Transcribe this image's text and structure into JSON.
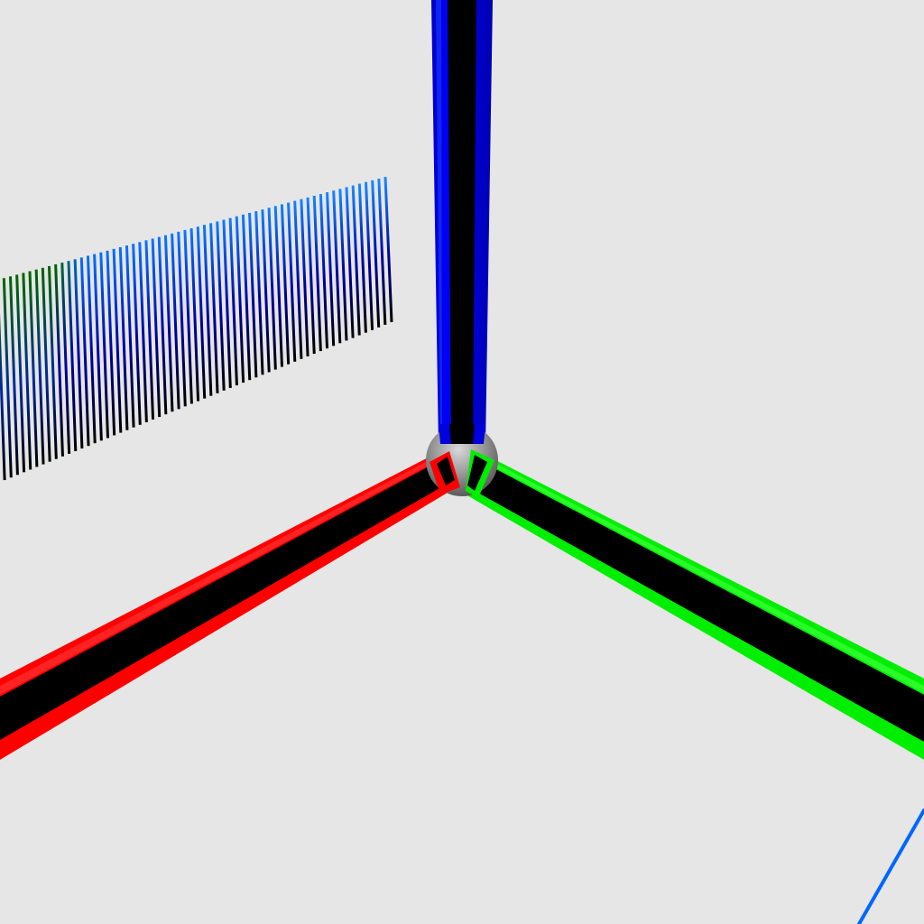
{
  "scene": {
    "background_color": "#e6e6e6",
    "axes": {
      "x_axis": {
        "color": "#ff0000",
        "core_color": "#000000"
      },
      "y_axis": {
        "color": "#00ff00",
        "core_color": "#000000"
      },
      "z_axis": {
        "color": "#0000ff",
        "core_color": "#000000"
      },
      "origin_sphere": {
        "color": "#9a9a9a"
      }
    },
    "line_field": {
      "description_colors": {
        "top_color_near": "#0066ff",
        "top_color_far": "#1a8cff",
        "bottom_color": "#000000",
        "far_left_top_color": "#006600"
      }
    },
    "stray_line": {
      "color": "#0066ff"
    }
  }
}
